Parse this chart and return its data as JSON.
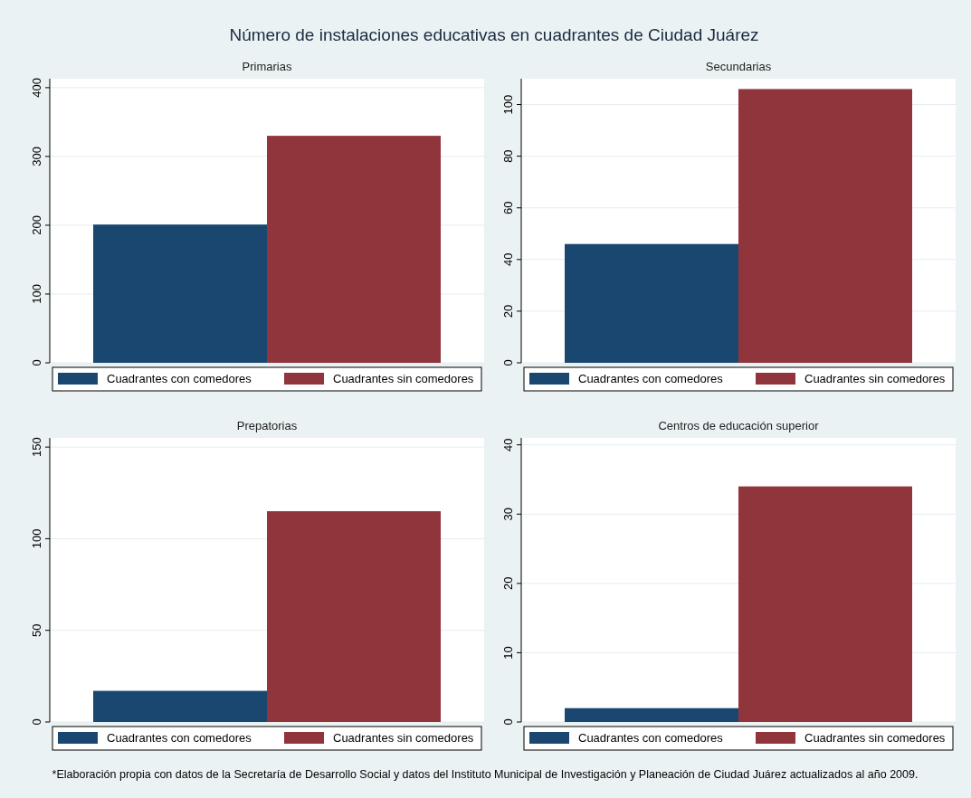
{
  "chart_data": [
    {
      "type": "bar",
      "title": "Primarias",
      "annotations": [
        "Número de instalaciones educativas en cuadrantes de Ciudad Juárez",
        "*Elaboración propia con datos de la Secretaría de Desarrollo Social y datos del Instituto Municipal de Investigación y Planeación de Ciudad Juárez actualizados al año 2009."
      ],
      "categories": [
        null
      ],
      "series": [
        {
          "name": "Cuadrantes con comedores",
          "color": "#1a476f",
          "values": [
            201
          ]
        },
        {
          "name": "Cuadrantes sin comedores",
          "color": "#90353b",
          "values": [
            330
          ]
        }
      ],
      "ylim": [
        0,
        413
      ],
      "yticks": [
        0,
        100,
        200,
        300,
        400
      ],
      "grid": "y",
      "legend": "bottom"
    },
    {
      "type": "bar",
      "title": "Secundarias",
      "categories": [
        null
      ],
      "series": [
        {
          "name": "Cuadrantes con comedores",
          "color": "#1a476f",
          "values": [
            46
          ]
        },
        {
          "name": "Cuadrantes sin comedores",
          "color": "#90353b",
          "values": [
            106
          ]
        }
      ],
      "ylim": [
        0,
        110
      ],
      "yticks": [
        0,
        20,
        40,
        60,
        80,
        100
      ],
      "grid": "y",
      "legend": "bottom"
    },
    {
      "type": "bar",
      "title": "Prepatorias",
      "categories": [
        null
      ],
      "series": [
        {
          "name": "Cuadrantes con comedores",
          "color": "#1a476f",
          "values": [
            17
          ]
        },
        {
          "name": "Cuadrantes sin comedores",
          "color": "#90353b",
          "values": [
            115
          ]
        }
      ],
      "ylim": [
        0,
        155
      ],
      "yticks": [
        0,
        50,
        100,
        150
      ],
      "grid": "y",
      "legend": "bottom"
    },
    {
      "type": "bar",
      "title": "Centros de educación superior",
      "categories": [
        null
      ],
      "series": [
        {
          "name": "Cuadrantes con comedores",
          "color": "#1a476f",
          "values": [
            2
          ]
        },
        {
          "name": "Cuadrantes sin comedores",
          "color": "#90353b",
          "values": [
            34
          ]
        }
      ],
      "ylim": [
        0,
        41
      ],
      "yticks": [
        0,
        10,
        20,
        30,
        40
      ],
      "grid": "y",
      "legend": "bottom"
    }
  ]
}
